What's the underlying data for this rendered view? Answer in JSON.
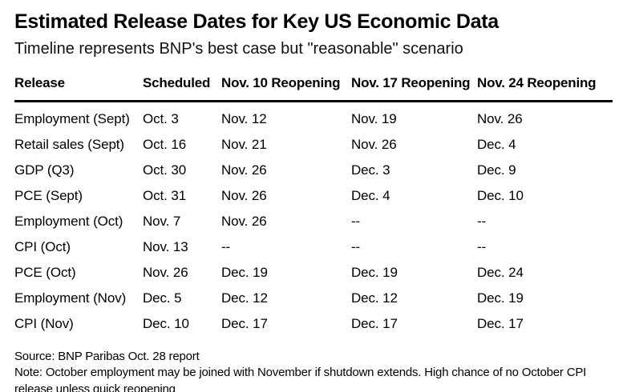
{
  "header": {
    "title": "Estimated Release Dates for Key US Economic Data",
    "subtitle": "Timeline represents BNP's best case but \"reasonable\" scenario"
  },
  "chart_data": {
    "type": "table",
    "title": "Estimated Release Dates for Key US Economic Data",
    "subtitle": "Timeline represents BNP's best case but \"reasonable\" scenario",
    "columns": [
      "Release",
      "Scheduled",
      "Nov. 10 Reopening",
      "Nov. 17 Reopening",
      "Nov. 24 Reopening"
    ],
    "rows": [
      [
        "Employment (Sept)",
        "Oct. 3",
        "Nov. 12",
        "Nov. 19",
        "Nov. 26"
      ],
      [
        "Retail sales (Sept)",
        "Oct. 16",
        "Nov. 21",
        "Nov. 26",
        "Dec. 4"
      ],
      [
        "GDP (Q3)",
        "Oct. 30",
        "Nov. 26",
        "Dec. 3",
        "Dec. 9"
      ],
      [
        "PCE (Sept)",
        "Oct. 31",
        "Nov. 26",
        "Dec. 4",
        "Dec. 10"
      ],
      [
        "Employment (Oct)",
        "Nov. 7",
        "Nov. 26",
        "--",
        "--"
      ],
      [
        "CPI (Oct)",
        "Nov. 13",
        "--",
        "--",
        "--"
      ],
      [
        "PCE (Oct)",
        "Nov. 26",
        "Dec. 19",
        "Dec. 19",
        "Dec. 24"
      ],
      [
        "Employment (Nov)",
        "Dec. 5",
        "Dec. 12",
        "Dec. 12",
        "Dec. 19"
      ],
      [
        "CPI (Nov)",
        "Dec. 10",
        "Dec. 17",
        "Dec. 17",
        "Dec. 17"
      ]
    ],
    "layout": {
      "header_rule": "thick-black",
      "gridlines": "none",
      "background": "#ffffff"
    }
  },
  "footer": {
    "source": "Source: BNP Paribas Oct. 28 report",
    "note": "Note: October employment may be joined with November if shutdown extends. High chance of no October CPI release unless quick reopening"
  },
  "colors": {
    "text": "#000000",
    "background": "#ffffff",
    "header_rule": "#000000"
  }
}
